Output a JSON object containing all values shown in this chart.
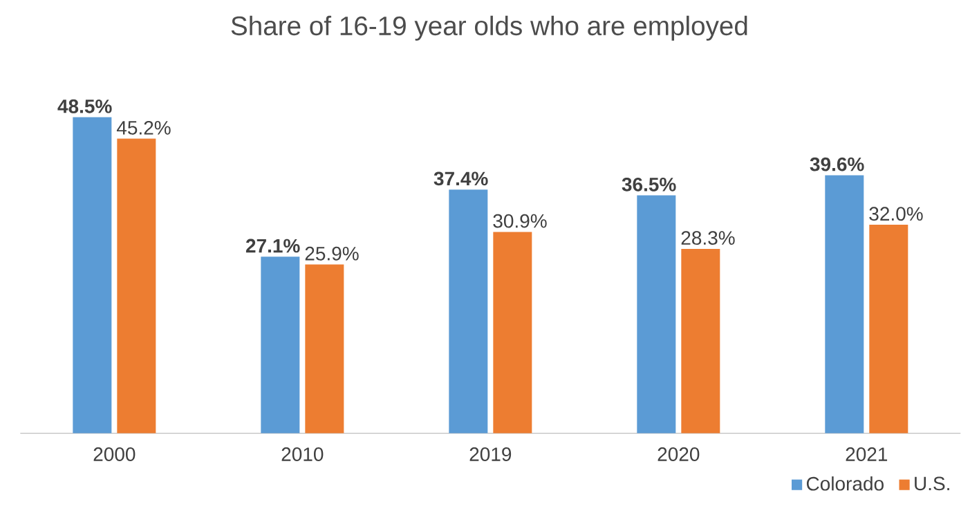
{
  "chart_data": {
    "type": "bar",
    "title": "Share of 16-19 year olds who are employed",
    "categories": [
      "2000",
      "2010",
      "2019",
      "2020",
      "2021"
    ],
    "series": [
      {
        "name": "Colorado",
        "color": "#5b9bd5",
        "values": [
          48.5,
          27.1,
          37.4,
          36.5,
          39.6
        ],
        "value_labels": [
          "48.5%",
          "27.1%",
          "37.4%",
          "36.5%",
          "39.6%"
        ]
      },
      {
        "name": "U.S.",
        "color": "#ed7d31",
        "values": [
          45.2,
          25.9,
          30.9,
          28.3,
          32.0
        ],
        "value_labels": [
          "45.2%",
          "25.9%",
          "30.9%",
          "28.3%",
          "32.0%"
        ]
      }
    ],
    "legend": "bottom right"
  }
}
